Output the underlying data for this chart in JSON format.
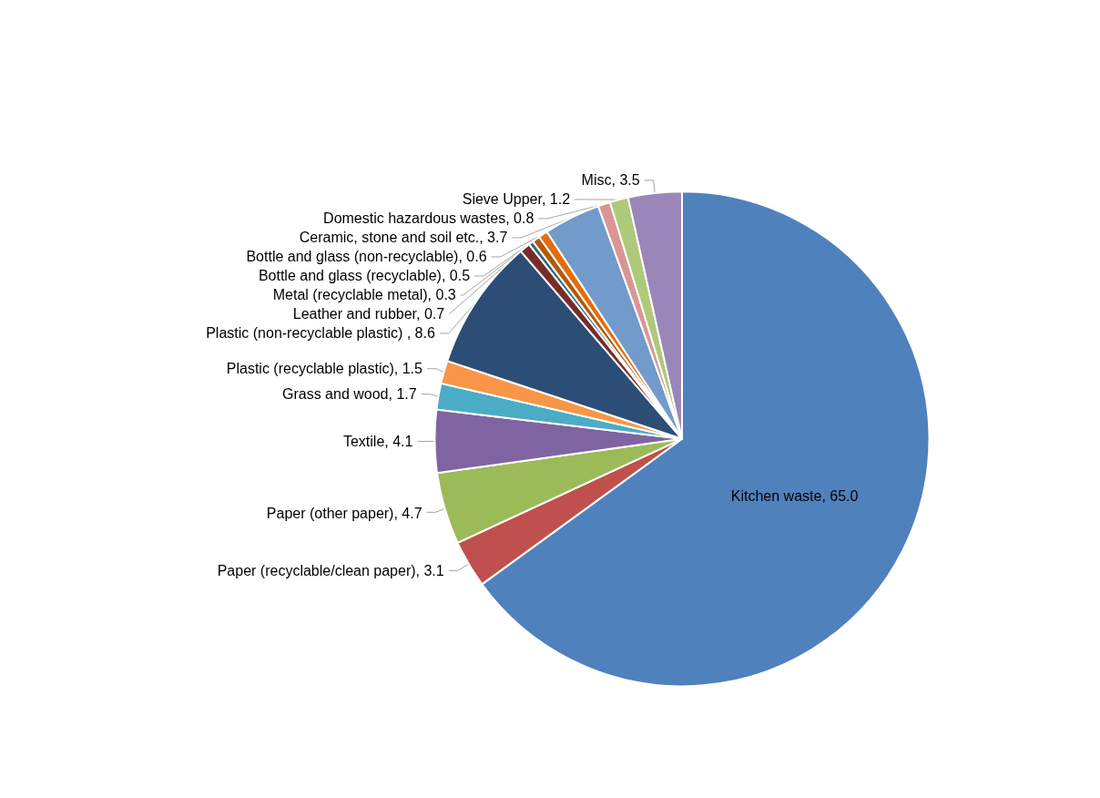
{
  "chart_data": {
    "type": "pie",
    "categories": [
      "Kitchen waste",
      "Paper (recyclable/clean paper)",
      "Paper (other paper)",
      "Textile",
      "Grass and wood",
      "Plastic (recyclable plastic)",
      "Plastic (non-recyclable plastic) ",
      "Leather and rubber",
      "Metal (recyclable metal)",
      "Bottle and glass (recyclable)",
      "Bottle and glass (non-recyclable)",
      "Ceramic, stone and soil etc.",
      "Domestic hazardous wastes",
      "Sieve Upper",
      "Misc"
    ],
    "values": [
      65.0,
      3.1,
      4.7,
      4.1,
      1.7,
      1.5,
      8.6,
      0.7,
      0.3,
      0.5,
      0.6,
      3.7,
      0.8,
      1.2,
      3.5
    ],
    "value_labels": [
      "65.0",
      "3.1",
      "4.7",
      "4.1",
      "1.7",
      "1.5",
      "8.6",
      "0.7",
      "0.3",
      "0.5",
      "0.6",
      "3.7",
      "0.8",
      "1.2",
      "3.5"
    ],
    "colors": [
      "#4f81bd",
      "#c0504d",
      "#9bbb59",
      "#8064a2",
      "#4bacc6",
      "#f79646",
      "#2c4d75",
      "#772c2a",
      "#276a7c",
      "#b65708",
      "#e46c0a",
      "#729aca",
      "#d99694",
      "#afc97a",
      "#9a86b8"
    ],
    "legend": false
  }
}
